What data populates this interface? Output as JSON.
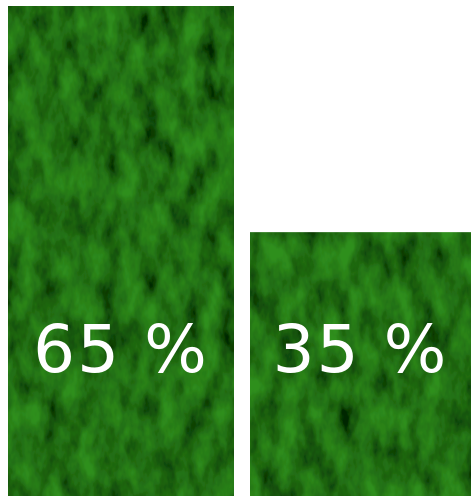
{
  "chart_data": {
    "type": "bar",
    "categories": [
      null,
      null
    ],
    "values": [
      65,
      35
    ],
    "value_labels": [
      "65 %",
      "35 %"
    ],
    "color": "#2f8f1c"
  }
}
